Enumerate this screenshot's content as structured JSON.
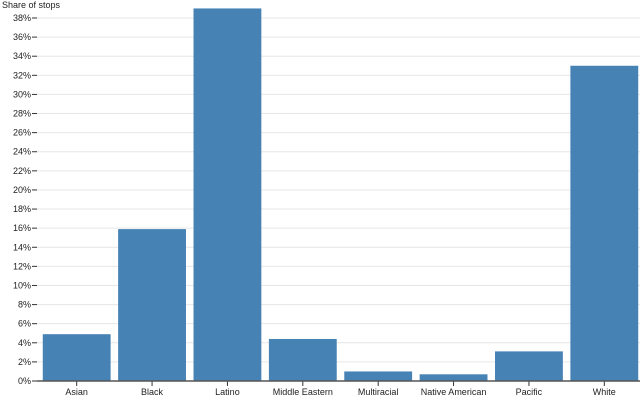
{
  "chart_data": {
    "type": "bar",
    "ylabel": "Share of stops",
    "categories": [
      "Asian",
      "Black",
      "Latino",
      "Middle Eastern",
      "Multiracial",
      "Native American",
      "Pacific",
      "White"
    ],
    "values": [
      4.9,
      15.9,
      39.0,
      4.4,
      1.0,
      0.7,
      3.1,
      33.0
    ],
    "value_unit": "%",
    "ylim": [
      0,
      38
    ],
    "yticks": [
      "0%",
      "2%",
      "4%",
      "6%",
      "8%",
      "10%",
      "12%",
      "14%",
      "16%",
      "18%",
      "20%",
      "22%",
      "24%",
      "26%",
      "28%",
      "30%",
      "32%",
      "34%",
      "36%",
      "38%"
    ],
    "grid": true,
    "bar_color": "#4682b4"
  }
}
